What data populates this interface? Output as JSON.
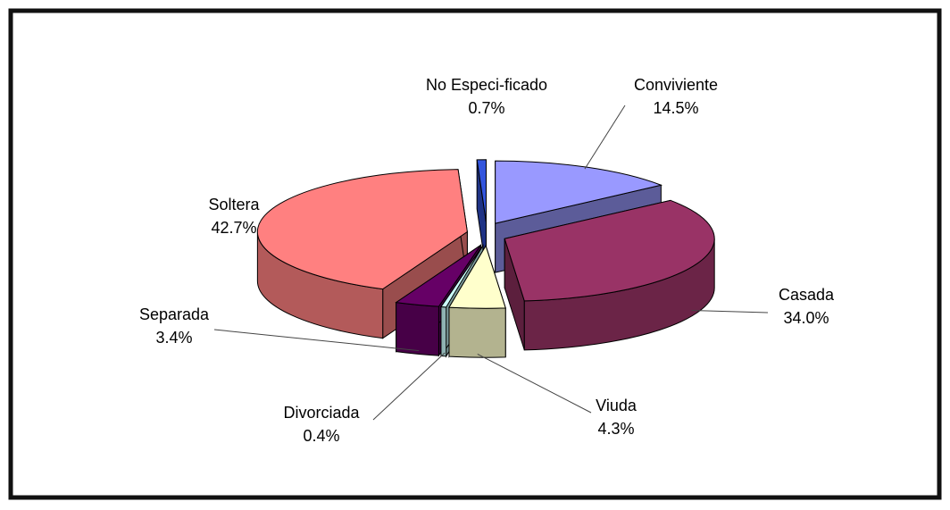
{
  "chart_data": {
    "type": "pie",
    "categories": [
      "Conviviente",
      "Casada",
      "Viuda",
      "Divorciada",
      "Separada",
      "Soltera",
      "No Especi-ficado"
    ],
    "values": [
      14.5,
      34.0,
      4.3,
      0.4,
      3.4,
      42.7,
      0.7
    ],
    "value_labels": [
      "14.5%",
      "34.0%",
      "4.3%",
      "0.4%",
      "3.4%",
      "42.7%",
      "0.7%"
    ],
    "colors": [
      "#9999ff",
      "#993366",
      "#ffffcc",
      "#ccffff",
      "#660066",
      "#ff8080",
      "#3355dd"
    ],
    "three_d": true,
    "exploded": true
  }
}
